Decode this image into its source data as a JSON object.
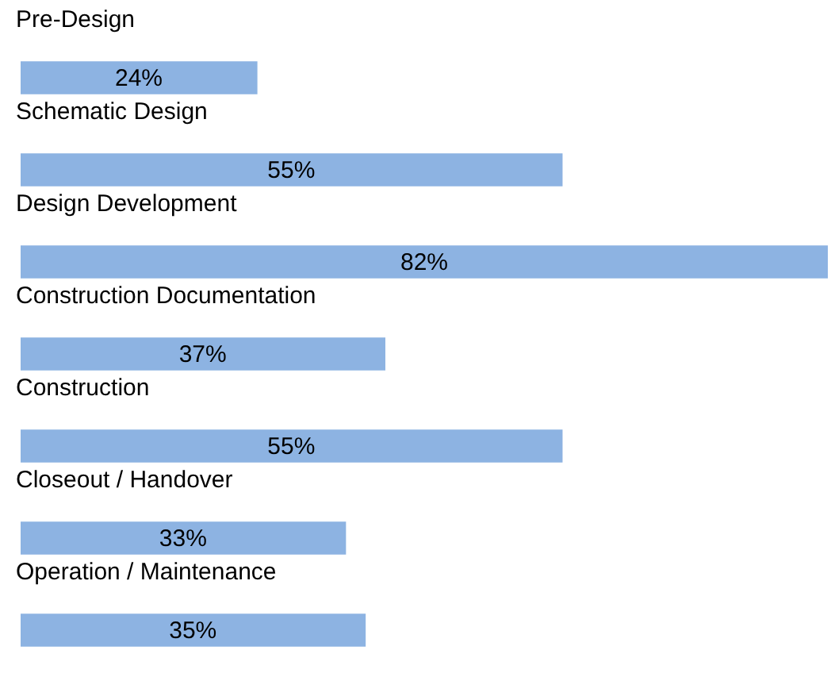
{
  "chart_data": {
    "type": "bar",
    "orientation": "horizontal",
    "categories": [
      "Pre-Design",
      "Schematic Design",
      "Design Development",
      "Construction Documentation",
      "Construction",
      "Closeout / Handover",
      "Operation / Maintenance"
    ],
    "values": [
      24,
      55,
      82,
      37,
      55,
      33,
      35
    ],
    "value_labels": [
      "24%",
      "55%",
      "82%",
      "37%",
      "55%",
      "33%",
      "35%"
    ],
    "color": "#8db3e2"
  }
}
